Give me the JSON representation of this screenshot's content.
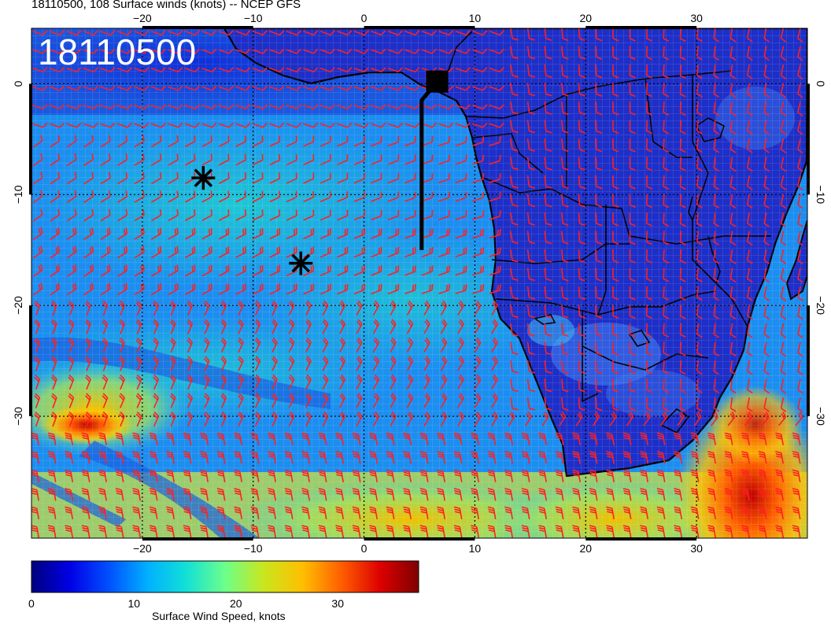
{
  "title": "18110500, 108 Surface winds (knots) -- NCEP GFS",
  "stamp": "18110500",
  "map": {
    "lon_range": [
      -30,
      40
    ],
    "lat_range": [
      -41,
      5
    ],
    "lon_ticks": [
      {
        "value": -20,
        "label": "−20"
      },
      {
        "value": -10,
        "label": "−10"
      },
      {
        "value": 0,
        "label": "0"
      },
      {
        "value": 10,
        "label": "10"
      },
      {
        "value": 20,
        "label": "20"
      },
      {
        "value": 30,
        "label": "30"
      }
    ],
    "lat_ticks": [
      {
        "value": 0,
        "label": "0"
      },
      {
        "value": -10,
        "label": "−10"
      },
      {
        "value": -20,
        "label": "−20"
      },
      {
        "value": -30,
        "label": "−30"
      }
    ],
    "gridlines": true,
    "markers": [
      {
        "name": "star-marker-1",
        "lon": -14.5,
        "lat": -8.5
      },
      {
        "name": "star-marker-2",
        "lon": -5.7,
        "lat": -16.2
      }
    ],
    "square_marker": {
      "lon": 6.6,
      "lat": 0.2
    },
    "track": [
      [
        5.2,
        -15.0
      ],
      [
        5.2,
        -1.5
      ],
      [
        6.6,
        0.2
      ]
    ]
  },
  "colorbar": {
    "label": "Surface Wind Speed, knots",
    "ticks": [
      {
        "value": 0,
        "label": "0"
      },
      {
        "value": 10,
        "label": "10"
      },
      {
        "value": 20,
        "label": "20"
      },
      {
        "value": 30,
        "label": "30"
      }
    ],
    "range": [
      0,
      38
    ],
    "colors": [
      "#00007f",
      "#0000e6",
      "#0050ff",
      "#00b0ff",
      "#13e0d6",
      "#6cff8a",
      "#c9e61d",
      "#ffbf00",
      "#ff5f00",
      "#dd0000",
      "#800000"
    ]
  }
}
